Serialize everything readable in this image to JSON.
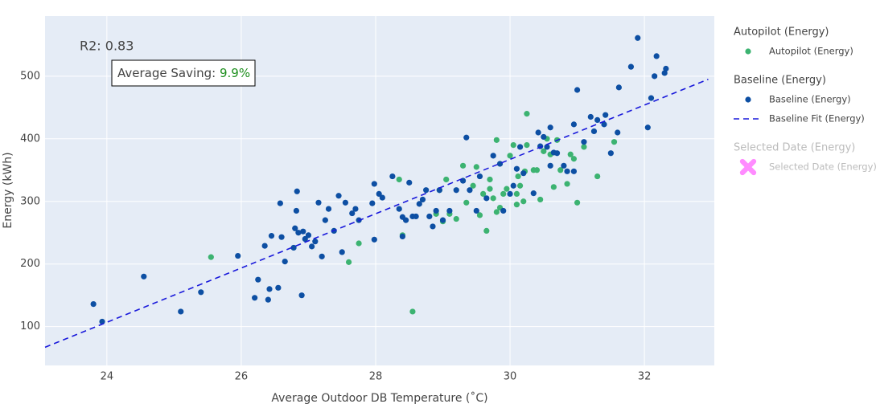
{
  "chart_data": {
    "type": "scatter",
    "xlabel": "Average Outdoor DB Temperature (˚C)",
    "ylabel": "Energy (kWh)",
    "r2_label": "R2: 0.83",
    "saving_label": "Average Saving:",
    "saving_value": "9.9%",
    "xlim": [
      23.08,
      33.04
    ],
    "ylim": [
      38,
      596
    ],
    "xticks": [
      24,
      26,
      28,
      30,
      32
    ],
    "yticks": [
      100,
      200,
      300,
      400,
      500
    ],
    "grid": true,
    "legend": "outside-right",
    "series": [
      {
        "name": "Autopilot (Energy)",
        "legendgroup": "Autopilot (Energy)",
        "color": "#3cb371",
        "mode": "markers",
        "x": [
          25.55,
          27.6,
          27.75,
          28.35,
          28.4,
          28.55,
          28.9,
          28.95,
          29.0,
          29.05,
          29.1,
          29.2,
          29.3,
          29.35,
          29.45,
          29.5,
          29.55,
          29.6,
          29.65,
          29.7,
          29.7,
          29.75,
          29.8,
          29.8,
          29.85,
          29.9,
          29.95,
          30.0,
          30.05,
          30.1,
          30.1,
          30.12,
          30.15,
          30.2,
          30.22,
          30.25,
          30.25,
          30.35,
          30.4,
          30.45,
          30.5,
          30.55,
          30.6,
          30.65,
          30.7,
          30.75,
          30.85,
          30.9,
          30.95,
          31.0,
          31.1,
          31.3,
          31.55
        ],
        "values": [
          211,
          203,
          233,
          335,
          246,
          124,
          280,
          318,
          268,
          335,
          280,
          272,
          357,
          298,
          325,
          355,
          278,
          312,
          253,
          320,
          335,
          305,
          283,
          398,
          290,
          312,
          320,
          373,
          390,
          312,
          295,
          340,
          325,
          300,
          348,
          390,
          440,
          350,
          350,
          303,
          380,
          400,
          375,
          323,
          398,
          350,
          328,
          375,
          368,
          298,
          387,
          340,
          395
        ]
      },
      {
        "name": "Baseline (Energy)",
        "legendgroup": "Baseline (Energy)",
        "color": "#0d4fa3",
        "mode": "markers",
        "x": [
          23.8,
          23.93,
          24.55,
          25.1,
          25.4,
          25.95,
          26.2,
          26.25,
          26.35,
          26.4,
          26.42,
          26.45,
          26.55,
          26.58,
          26.6,
          26.65,
          26.78,
          26.8,
          26.82,
          26.83,
          26.85,
          26.9,
          26.92,
          26.95,
          27.0,
          27.05,
          27.1,
          27.15,
          27.2,
          27.25,
          27.3,
          27.38,
          27.45,
          27.5,
          27.55,
          27.65,
          27.7,
          27.75,
          27.95,
          27.98,
          27.98,
          28.05,
          28.1,
          28.25,
          28.35,
          28.4,
          28.4,
          28.45,
          28.5,
          28.55,
          28.6,
          28.65,
          28.7,
          28.75,
          28.8,
          28.85,
          28.9,
          28.95,
          29.0,
          29.1,
          29.2,
          29.3,
          29.35,
          29.4,
          29.5,
          29.55,
          29.65,
          29.75,
          29.85,
          29.9,
          30.0,
          30.05,
          30.1,
          30.15,
          30.2,
          30.35,
          30.42,
          30.45,
          30.5,
          30.55,
          30.6,
          30.6,
          30.65,
          30.7,
          30.8,
          30.85,
          30.95,
          30.95,
          31.0,
          31.1,
          31.2,
          31.25,
          31.3,
          31.4,
          31.42,
          31.5,
          31.6,
          31.62,
          31.8,
          31.9,
          32.05,
          32.1,
          32.15,
          32.18,
          32.3,
          32.32
        ],
        "values": [
          136,
          108,
          180,
          124,
          155,
          213,
          146,
          175,
          229,
          143,
          160,
          245,
          162,
          297,
          243,
          204,
          226,
          257,
          285,
          316,
          250,
          150,
          252,
          240,
          246,
          228,
          236,
          298,
          212,
          270,
          288,
          253,
          309,
          219,
          298,
          281,
          288,
          270,
          297,
          239,
          328,
          312,
          306,
          340,
          288,
          244,
          275,
          270,
          330,
          276,
          276,
          296,
          303,
          318,
          276,
          260,
          285,
          318,
          270,
          285,
          318,
          333,
          402,
          318,
          285,
          340,
          305,
          373,
          360,
          285,
          312,
          325,
          352,
          387,
          345,
          313,
          410,
          388,
          403,
          387,
          357,
          418,
          378,
          377,
          357,
          348,
          423,
          348,
          478,
          395,
          435,
          412,
          430,
          423,
          438,
          377,
          410,
          482,
          515,
          561,
          418,
          465,
          500,
          532,
          505,
          512
        ]
      },
      {
        "name": "Baseline Fit (Energy)",
        "legendgroup": "Baseline (Energy)",
        "color": "#1a1adb",
        "mode": "lines",
        "dash": true,
        "x": [
          23.08,
          32.95
        ],
        "values": [
          67,
          495
        ]
      },
      {
        "name": "Selected Date (Energy)",
        "legendgroup": "Selected Date (Energy)",
        "color": "#ff8cff",
        "mode": "x-markers",
        "visible": "legendonly",
        "x": [],
        "values": []
      }
    ]
  }
}
